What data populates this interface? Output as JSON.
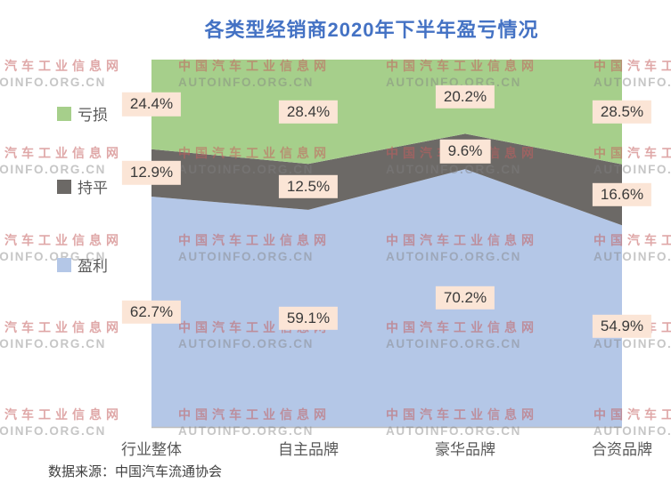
{
  "title": "各类型经销商2020年下半年盈亏情况",
  "source_note": "数据来源：中国汽车流通协会",
  "watermark": {
    "line1": "中国汽车工业信息网",
    "line2": "AUTOINFO.ORG.CN"
  },
  "colors": {
    "title": "#4472C4",
    "loss": "#A6CF8B",
    "flat": "#6C6966",
    "profit": "#B4C7E7",
    "label_bg": "#FBE5D6",
    "label_text": "#3A3A3A",
    "axis_line": "#BFBFBF",
    "axis_text": "#595959",
    "watermark_cn": "rgba(197,94,94,0.55)",
    "watermark_en": "rgba(128,128,128,0.45)"
  },
  "legend": [
    {
      "label": "亏损",
      "color_key": "loss"
    },
    {
      "label": "持平",
      "color_key": "flat"
    },
    {
      "label": "盈利",
      "color_key": "profit"
    }
  ],
  "chart_data": {
    "type": "area",
    "stacked": true,
    "percent_stacked": true,
    "unit": "%",
    "title": "各类型经销商2020年下半年盈亏情况",
    "categories": [
      "行业整体",
      "自主品牌",
      "豪华品牌",
      "合资品牌"
    ],
    "series": [
      {
        "name": "盈利",
        "color_key": "profit",
        "values": [
          62.7,
          59.1,
          70.2,
          54.9
        ]
      },
      {
        "name": "持平",
        "color_key": "flat",
        "values": [
          12.9,
          12.5,
          9.6,
          16.6
        ]
      },
      {
        "name": "亏损",
        "color_key": "loss",
        "values": [
          24.4,
          28.4,
          20.2,
          28.5
        ]
      }
    ],
    "ylim": [
      0,
      100
    ],
    "grid": false,
    "legend_position": "left",
    "data_labels": true,
    "source": "中国汽车流通协会"
  }
}
